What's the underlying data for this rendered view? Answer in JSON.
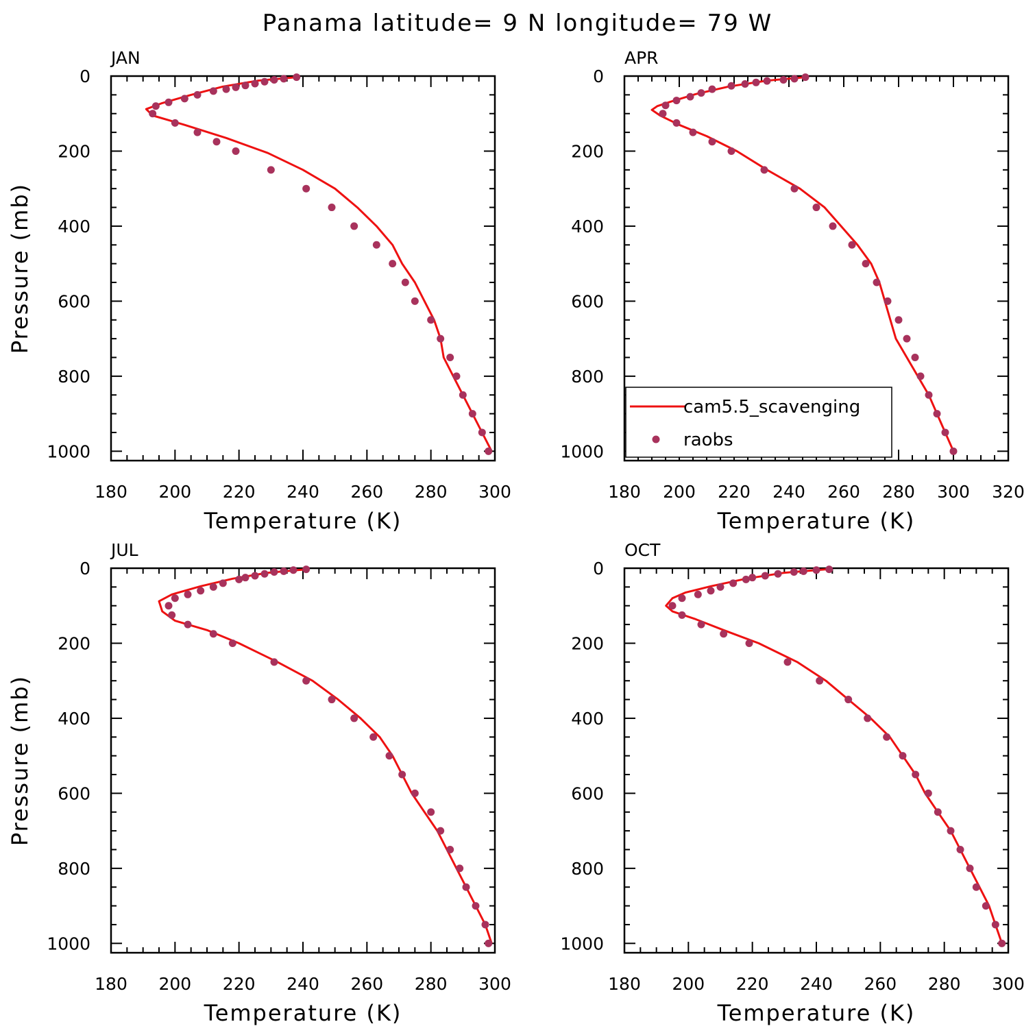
{
  "title": "Panama  latitude= 9 N longitude= 79 W",
  "legend": {
    "model_label": "cam5.5_scavenging",
    "obs_label": "raobs"
  },
  "colors": {
    "model": "#ee1111",
    "obs": "#a8325c",
    "axis": "#000000"
  },
  "chart_data": [
    {
      "type": "line",
      "panel_label": "JAN",
      "xlabel": "Temperature (K)",
      "ylabel": "Pressure (mb)",
      "xlim": [
        180,
        300
      ],
      "ylim": [
        0,
        1025
      ],
      "y_inverted": true,
      "xticks": [
        180,
        200,
        220,
        240,
        260,
        280,
        300
      ],
      "yticks": [
        0,
        200,
        400,
        600,
        800,
        1000
      ],
      "legend_shown": false,
      "series": [
        {
          "name": "cam5.5_scavenging",
          "kind": "line",
          "points": [
            [
              238,
              3
            ],
            [
              226,
              12
            ],
            [
              215,
              28
            ],
            [
              205,
              50
            ],
            [
              196,
              72
            ],
            [
              191,
              88
            ],
            [
              193,
              105
            ],
            [
              203,
              130
            ],
            [
              216,
              165
            ],
            [
              229,
              205
            ],
            [
              240,
              250
            ],
            [
              250,
              300
            ],
            [
              257,
              350
            ],
            [
              263,
              400
            ],
            [
              268,
              450
            ],
            [
              271,
              500
            ],
            [
              275,
              550
            ],
            [
              278,
              600
            ],
            [
              281,
              650
            ],
            [
              283,
              700
            ],
            [
              284,
              750
            ],
            [
              287,
              800
            ],
            [
              290,
              850
            ],
            [
              293,
              900
            ],
            [
              296,
              950
            ],
            [
              299,
              1000
            ]
          ]
        },
        {
          "name": "raobs",
          "kind": "scatter",
          "points": [
            [
              238,
              3
            ],
            [
              234,
              7
            ],
            [
              231,
              10
            ],
            [
              228,
              15
            ],
            [
              225,
              20
            ],
            [
              222,
              25
            ],
            [
              219,
              30
            ],
            [
              216,
              35
            ],
            [
              212,
              40
            ],
            [
              207,
              50
            ],
            [
              203,
              60
            ],
            [
              198,
              70
            ],
            [
              194,
              80
            ],
            [
              193,
              100
            ],
            [
              200,
              125
            ],
            [
              207,
              150
            ],
            [
              213,
              175
            ],
            [
              219,
              200
            ],
            [
              230,
              250
            ],
            [
              241,
              300
            ],
            [
              249,
              350
            ],
            [
              256,
              400
            ],
            [
              263,
              450
            ],
            [
              268,
              500
            ],
            [
              272,
              550
            ],
            [
              275,
              600
            ],
            [
              280,
              650
            ],
            [
              283,
              700
            ],
            [
              286,
              750
            ],
            [
              288,
              800
            ],
            [
              290,
              850
            ],
            [
              293,
              900
            ],
            [
              296,
              950
            ],
            [
              298,
              1000
            ]
          ]
        }
      ]
    },
    {
      "type": "line",
      "panel_label": "APR",
      "xlabel": "Temperature (K)",
      "ylabel": "",
      "xlim": [
        180,
        320
      ],
      "ylim": [
        0,
        1025
      ],
      "y_inverted": true,
      "xticks": [
        180,
        200,
        220,
        240,
        260,
        280,
        300,
        320
      ],
      "yticks": [
        0,
        200,
        400,
        600,
        800,
        1000
      ],
      "legend_shown": true,
      "legend_position": "bottom-left",
      "series": [
        {
          "name": "cam5.5_scavenging",
          "kind": "line",
          "points": [
            [
              246,
              3
            ],
            [
              232,
              12
            ],
            [
              218,
              28
            ],
            [
              206,
              48
            ],
            [
              197,
              68
            ],
            [
              192,
              80
            ],
            [
              190,
              90
            ],
            [
              193,
              105
            ],
            [
              200,
              130
            ],
            [
              210,
              160
            ],
            [
              221,
              200
            ],
            [
              232,
              250
            ],
            [
              244,
              300
            ],
            [
              253,
              350
            ],
            [
              259,
              400
            ],
            [
              265,
              450
            ],
            [
              270,
              500
            ],
            [
              273,
              550
            ],
            [
              275,
              600
            ],
            [
              277,
              650
            ],
            [
              279,
              700
            ],
            [
              283,
              750
            ],
            [
              287,
              800
            ],
            [
              291,
              850
            ],
            [
              294,
              900
            ],
            [
              297,
              950
            ],
            [
              300,
              1000
            ]
          ]
        },
        {
          "name": "raobs",
          "kind": "scatter",
          "points": [
            [
              246,
              3
            ],
            [
              242,
              7
            ],
            [
              238,
              10
            ],
            [
              232,
              13
            ],
            [
              228,
              17
            ],
            [
              224,
              21
            ],
            [
              219,
              26
            ],
            [
              212,
              35
            ],
            [
              208,
              45
            ],
            [
              204,
              55
            ],
            [
              199,
              65
            ],
            [
              195,
              78
            ],
            [
              194,
              100
            ],
            [
              199,
              125
            ],
            [
              205,
              150
            ],
            [
              212,
              175
            ],
            [
              219,
              200
            ],
            [
              231,
              250
            ],
            [
              242,
              300
            ],
            [
              250,
              350
            ],
            [
              256,
              400
            ],
            [
              263,
              450
            ],
            [
              268,
              500
            ],
            [
              272,
              550
            ],
            [
              276,
              600
            ],
            [
              280,
              650
            ],
            [
              283,
              700
            ],
            [
              286,
              750
            ],
            [
              288,
              800
            ],
            [
              291,
              850
            ],
            [
              294,
              900
            ],
            [
              297,
              950
            ],
            [
              300,
              1000
            ]
          ]
        }
      ]
    },
    {
      "type": "line",
      "panel_label": "JUL",
      "xlabel": "Temperature (K)",
      "ylabel": "Pressure (mb)",
      "xlim": [
        180,
        300
      ],
      "ylim": [
        0,
        1025
      ],
      "y_inverted": true,
      "xticks": [
        180,
        200,
        220,
        240,
        260,
        280,
        300
      ],
      "yticks": [
        0,
        200,
        400,
        600,
        800,
        1000
      ],
      "legend_shown": false,
      "series": [
        {
          "name": "cam5.5_scavenging",
          "kind": "line",
          "points": [
            [
              241,
              3
            ],
            [
              229,
              12
            ],
            [
              218,
              28
            ],
            [
              208,
              48
            ],
            [
              199,
              70
            ],
            [
              195,
              88
            ],
            [
              196,
              115
            ],
            [
              200,
              140
            ],
            [
              210,
              165
            ],
            [
              220,
              200
            ],
            [
              232,
              250
            ],
            [
              243,
              300
            ],
            [
              251,
              350
            ],
            [
              258,
              400
            ],
            [
              264,
              450
            ],
            [
              268,
              500
            ],
            [
              271,
              550
            ],
            [
              274,
              600
            ],
            [
              278,
              650
            ],
            [
              282,
              700
            ],
            [
              285,
              750
            ],
            [
              288,
              800
            ],
            [
              291,
              850
            ],
            [
              294,
              900
            ],
            [
              297,
              950
            ],
            [
              299,
              1000
            ]
          ]
        },
        {
          "name": "raobs",
          "kind": "scatter",
          "points": [
            [
              241,
              3
            ],
            [
              237,
              5
            ],
            [
              234,
              8
            ],
            [
              231,
              10
            ],
            [
              228,
              15
            ],
            [
              225,
              20
            ],
            [
              222,
              25
            ],
            [
              220,
              30
            ],
            [
              215,
              40
            ],
            [
              212,
              50
            ],
            [
              208,
              60
            ],
            [
              204,
              70
            ],
            [
              200,
              80
            ],
            [
              198,
              100
            ],
            [
              199,
              125
            ],
            [
              204,
              150
            ],
            [
              212,
              175
            ],
            [
              218,
              200
            ],
            [
              231,
              250
            ],
            [
              241,
              300
            ],
            [
              249,
              350
            ],
            [
              256,
              400
            ],
            [
              262,
              450
            ],
            [
              267,
              500
            ],
            [
              271,
              550
            ],
            [
              275,
              600
            ],
            [
              280,
              650
            ],
            [
              283,
              700
            ],
            [
              286,
              750
            ],
            [
              289,
              800
            ],
            [
              291,
              850
            ],
            [
              294,
              900
            ],
            [
              297,
              950
            ],
            [
              298,
              1000
            ]
          ]
        }
      ]
    },
    {
      "type": "line",
      "panel_label": "OCT",
      "xlabel": "Temperature (K)",
      "ylabel": "",
      "xlim": [
        180,
        300
      ],
      "ylim": [
        0,
        1025
      ],
      "y_inverted": true,
      "xticks": [
        180,
        200,
        220,
        240,
        260,
        280,
        300
      ],
      "yticks": [
        0,
        200,
        400,
        600,
        800,
        1000
      ],
      "legend_shown": false,
      "series": [
        {
          "name": "cam5.5_scavenging",
          "kind": "line",
          "points": [
            [
              243,
              3
            ],
            [
              230,
              12
            ],
            [
              218,
              28
            ],
            [
              207,
              48
            ],
            [
              199,
              65
            ],
            [
              195,
              80
            ],
            [
              193,
              100
            ],
            [
              195,
              115
            ],
            [
              202,
              135
            ],
            [
              211,
              165
            ],
            [
              222,
              200
            ],
            [
              234,
              250
            ],
            [
              243,
              300
            ],
            [
              250,
              350
            ],
            [
              257,
              400
            ],
            [
              263,
              450
            ],
            [
              267,
              500
            ],
            [
              271,
              550
            ],
            [
              274,
              600
            ],
            [
              278,
              650
            ],
            [
              282,
              700
            ],
            [
              285,
              750
            ],
            [
              288,
              800
            ],
            [
              291,
              850
            ],
            [
              294,
              900
            ],
            [
              296,
              950
            ],
            [
              298,
              1000
            ]
          ]
        },
        {
          "name": "raobs",
          "kind": "scatter",
          "points": [
            [
              244,
              3
            ],
            [
              240,
              5
            ],
            [
              236,
              8
            ],
            [
              233,
              10
            ],
            [
              228,
              15
            ],
            [
              224,
              20
            ],
            [
              220,
              25
            ],
            [
              218,
              30
            ],
            [
              214,
              40
            ],
            [
              210,
              50
            ],
            [
              207,
              60
            ],
            [
              203,
              70
            ],
            [
              198,
              80
            ],
            [
              195,
              100
            ],
            [
              198,
              125
            ],
            [
              204,
              150
            ],
            [
              211,
              175
            ],
            [
              219,
              200
            ],
            [
              231,
              250
            ],
            [
              241,
              300
            ],
            [
              250,
              350
            ],
            [
              256,
              400
            ],
            [
              262,
              450
            ],
            [
              267,
              500
            ],
            [
              271,
              550
            ],
            [
              275,
              600
            ],
            [
              278,
              650
            ],
            [
              282,
              700
            ],
            [
              285,
              750
            ],
            [
              288,
              800
            ],
            [
              290,
              850
            ],
            [
              293,
              900
            ],
            [
              296,
              950
            ],
            [
              298,
              1000
            ]
          ]
        }
      ]
    }
  ]
}
